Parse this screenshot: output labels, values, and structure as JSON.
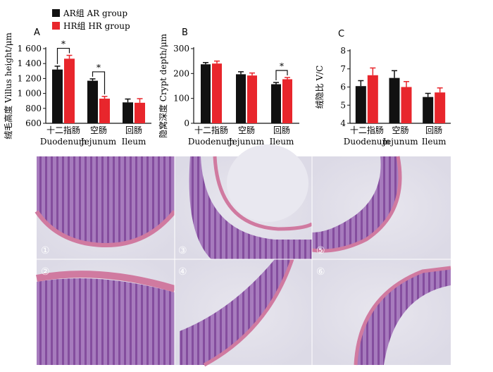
{
  "legend": [
    {
      "label": "AR组 AR group",
      "color": "#111111"
    },
    {
      "label": "HR组 HR group",
      "color": "#e8262c"
    }
  ],
  "chart_data": [
    {
      "type": "bar",
      "title": "A",
      "ylabel": "绒毛高度 Villus height/μm",
      "ylim": [
        600,
        1600
      ],
      "yticks": [
        600,
        800,
        1000,
        1200,
        1400,
        1600
      ],
      "categories": [
        [
          "十二指肠",
          "Duodenum"
        ],
        [
          "空肠",
          "Jejunum"
        ],
        [
          "回肠",
          "Ileum"
        ]
      ],
      "series": [
        {
          "name": "AR组 AR group",
          "color": "#111111",
          "values": [
            1320,
            1170,
            880
          ],
          "errors": [
            45,
            25,
            45
          ]
        },
        {
          "name": "HR组 HR group",
          "color": "#e8262c",
          "values": [
            1465,
            930,
            875
          ],
          "errors": [
            45,
            30,
            55
          ]
        }
      ],
      "significance": [
        {
          "category": 0,
          "label": "*"
        },
        {
          "category": 1,
          "label": "*"
        }
      ]
    },
    {
      "type": "bar",
      "title": "B",
      "ylabel": "隐窝深度 Crypt depth/μm",
      "ylim": [
        0,
        300
      ],
      "yticks": [
        0,
        100,
        200,
        300
      ],
      "categories": [
        [
          "十二指肠",
          "Duodenum"
        ],
        [
          "空肠",
          "Jejunum"
        ],
        [
          "回肠",
          "Ileum"
        ]
      ],
      "series": [
        {
          "name": "AR组 AR group",
          "color": "#111111",
          "values": [
            237,
            197,
            157
          ],
          "errors": [
            7,
            10,
            7
          ]
        },
        {
          "name": "HR组 HR group",
          "color": "#e8262c",
          "values": [
            240,
            192,
            177
          ],
          "errors": [
            10,
            10,
            7
          ]
        }
      ],
      "significance": [
        {
          "category": 2,
          "label": "*"
        }
      ]
    },
    {
      "type": "bar",
      "title": "C",
      "ylabel": "绒隐比 V/C",
      "ylim": [
        4,
        8
      ],
      "yticks": [
        4,
        5,
        6,
        7,
        8
      ],
      "categories": [
        [
          "十二指肠",
          "Duodenum"
        ],
        [
          "空肠",
          "Jejunum"
        ],
        [
          "回肠",
          "Ileum"
        ]
      ],
      "series": [
        {
          "name": "AR组 AR group",
          "color": "#111111",
          "values": [
            6.05,
            6.5,
            5.45
          ],
          "errors": [
            0.3,
            0.4,
            0.2
          ]
        },
        {
          "name": "HR组 HR group",
          "color": "#e8262c",
          "values": [
            6.65,
            6.0,
            5.7
          ],
          "errors": [
            0.4,
            0.3,
            0.25
          ]
        }
      ],
      "significance": []
    }
  ],
  "micrographs": [
    "①",
    "②",
    "③",
    "④",
    "⑤",
    "⑥"
  ]
}
